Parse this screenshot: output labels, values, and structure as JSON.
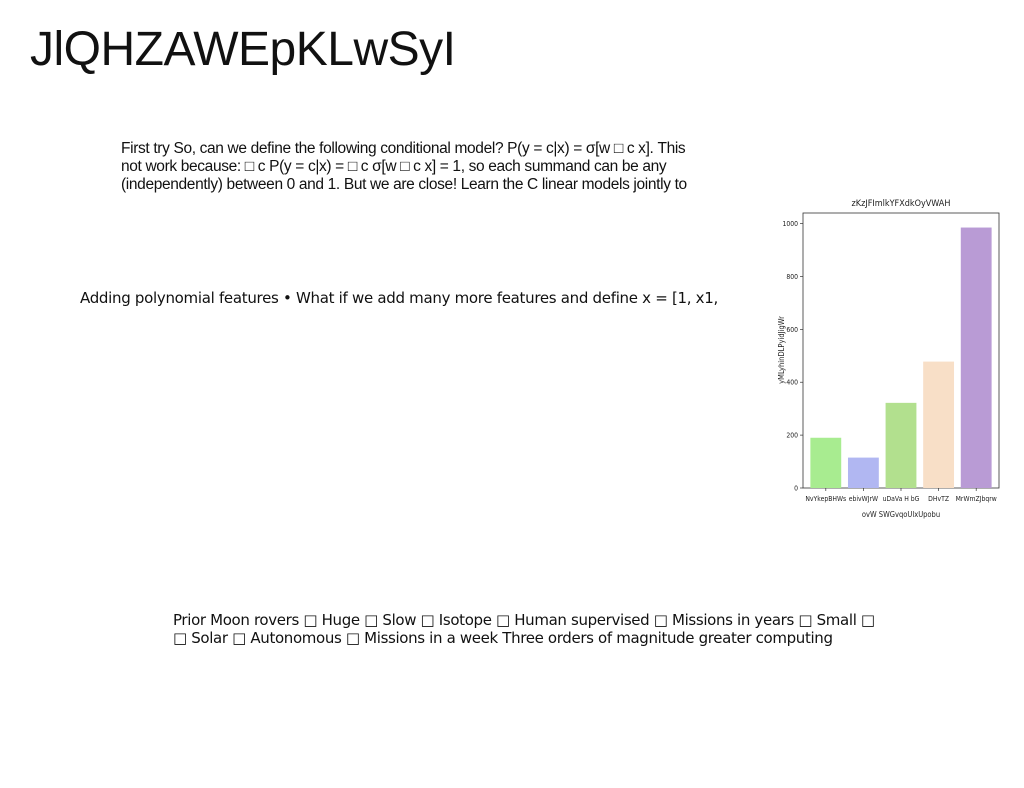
{
  "title": "JlQHZAWEpKLwSyI",
  "paragraph1": {
    "lines": [
      "First try So, can we define the following conditional model? P(y = c|x) = σ[w □ c x]. This",
      "not work because: □ c P(y = c|x) = □ c σ[w □ c x] = 1, so each summand can be any",
      "(independently) between 0 and 1. But we are close! Learn the C linear models jointly to"
    ]
  },
  "paragraph2": "Adding polynomial features • What if we add many more features and define x = [1, x1,",
  "paragraph3": {
    "lines": [
      "Prior Moon rovers □ Huge □ Slow □ Isotope □ Human supervised □ Missions in years □ Small □",
      "□ Solar □ Autonomous □ Missions in a week Three orders of magnitude greater computing"
    ]
  },
  "chart_data": {
    "type": "bar",
    "title": "zKzJFImlkYFXdkOyVWAH",
    "xlabel": "ovW SWGvqoUlxUpobu",
    "ylabel": "yMLyhinDLPyidJigWr",
    "categories": [
      "NvYkepBHWs",
      "ebivWJrW",
      "uDaVa H bG",
      "DHvTZ",
      "MrWmZJbqrw"
    ],
    "values": [
      190,
      115,
      322,
      478,
      985
    ],
    "colors": [
      "#a8ec90",
      "#b1b7f2",
      "#b2e08e",
      "#f8dfc7",
      "#b99bd5"
    ],
    "ylim": [
      0,
      1040
    ],
    "yticks": [
      0,
      200,
      400,
      600,
      800,
      1000
    ],
    "grid": false,
    "legend": "none"
  }
}
